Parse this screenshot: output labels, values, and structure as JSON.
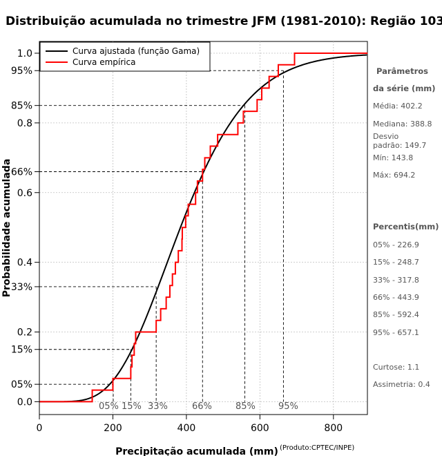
{
  "chart_data": {
    "type": "line",
    "title": "Distribuição acumulada no trimestre JFM (1981-2010): Região 103",
    "xlabel": "Precipitação acumulada (mm)",
    "ylabel": "Probabilidade acumulada",
    "credit": "(Produto:CPTEC/INPE)",
    "xlim": [
      0,
      900
    ],
    "ylim": [
      0,
      1
    ],
    "x_ticks": [
      0,
      200,
      400,
      600,
      800
    ],
    "y_ticks": [
      0.0,
      0.2,
      0.4,
      0.6,
      0.8,
      1.0
    ],
    "y_tick_labels": [
      "0.0",
      "0.2",
      "0.4",
      "0.6",
      "0.8",
      "1.0"
    ],
    "percent_ticks": [
      {
        "p": 0.05,
        "label": "05%"
      },
      {
        "p": 0.15,
        "label": "15%"
      },
      {
        "p": 0.33,
        "label": "33%"
      },
      {
        "p": 0.66,
        "label": "66%"
      },
      {
        "p": 0.85,
        "label": "85%"
      },
      {
        "p": 0.95,
        "label": "95%"
      }
    ],
    "percentiles": [
      {
        "label": "05%",
        "p": 0.05,
        "x": 226.9
      },
      {
        "label": "15%",
        "p": 0.15,
        "x": 248.7
      },
      {
        "label": "33%",
        "p": 0.33,
        "x": 317.8
      },
      {
        "label": "66%",
        "p": 0.66,
        "x": 443.9
      },
      {
        "label": "85%",
        "p": 0.85,
        "x": 592.4
      },
      {
        "label": "95%",
        "p": 0.95,
        "x": 657.1
      }
    ],
    "legend": [
      {
        "label": "Curva ajustada (função Gama)",
        "color": "#000000"
      },
      {
        "label": "Curva empírica",
        "color": "#ff0000"
      }
    ],
    "gamma_fit": {
      "mean": 402.2,
      "sd": 149.7
    },
    "empirical_samples": [
      143.8,
      200,
      248.7,
      252,
      258,
      262,
      317.8,
      330,
      345,
      355,
      362,
      370,
      378,
      388,
      388.8,
      398,
      405,
      425,
      430,
      443.9,
      450,
      465,
      485,
      540,
      555,
      592.4,
      605,
      625,
      650,
      694.2
    ]
  },
  "side_panel": {
    "params_title": "Parâmetros",
    "params_subtitle": "da série (mm)",
    "stats": [
      "Média: 402.2",
      "Mediana: 388.8",
      "Desvio",
      "padrão: 149.7",
      "Mín: 143.8",
      "Máx: 694.2"
    ],
    "percentis_title": "Percentis(mm)",
    "percentis": [
      "05% - 226.9",
      "15% - 248.7",
      "33% - 317.8",
      "66% - 443.9",
      "85% - 592.4",
      "95% - 657.1"
    ],
    "curtose": "Curtose: 1.1",
    "assimetria": "Assimetria: 0.4"
  },
  "colors": {
    "fit": "#000000",
    "empirical": "#ff0000",
    "grid": "#bebebe",
    "ref": "#000000"
  }
}
